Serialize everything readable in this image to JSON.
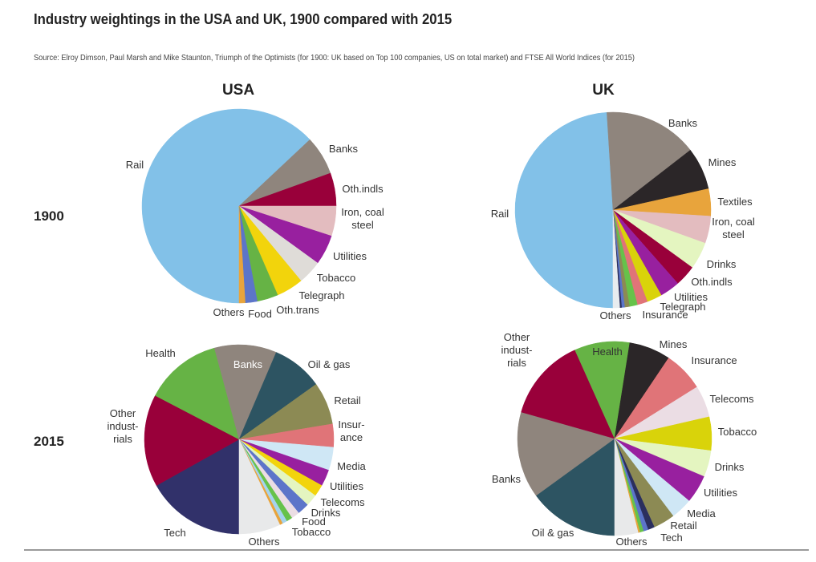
{
  "title": "Industry weightings in the USA and UK, 1900 compared with 2015",
  "source": "Source: Elroy Dimson, Paul Marsh and Mike Staunton, Triumph of the Optimists (for 1900: UK based on Top 100 companies, US on total market) and FTSE All World Indices (for 2015)",
  "columns": [
    "USA",
    "UK"
  ],
  "rows": [
    "1900",
    "2015"
  ],
  "chart_data": [
    {
      "type": "pie",
      "title": "USA 1900",
      "unit": "percent (estimated)",
      "start": "bottom, clockwise",
      "slices": [
        {
          "name": "Rail",
          "value": 63,
          "color": "#82c1e8",
          "label": [
            "Rail"
          ]
        },
        {
          "name": "Banks",
          "value": 6.5,
          "color": "#8f857d",
          "label": [
            "Banks"
          ]
        },
        {
          "name": "Oth.indls",
          "value": 5.5,
          "color": "#99003a",
          "label": [
            "Oth.indls"
          ]
        },
        {
          "name": "Iron, coal steel",
          "value": 5,
          "color": "#e3bcbf",
          "label": [
            "Iron, coal",
            "steel"
          ]
        },
        {
          "name": "Utilities",
          "value": 5,
          "color": "#98209f",
          "label": [
            "Utilities"
          ]
        },
        {
          "name": "Tobacco",
          "value": 4,
          "color": "#dfdcd8",
          "label": [
            "Tobacco"
          ]
        },
        {
          "name": "Telegraph",
          "value": 4.5,
          "color": "#f2d40c",
          "label": [
            "Telegraph"
          ]
        },
        {
          "name": "Oth.trans",
          "value": 3.5,
          "color": "#66b345",
          "label": [
            "Oth.trans"
          ]
        },
        {
          "name": "Food",
          "value": 2,
          "color": "#5c75c9",
          "label": [
            "Food"
          ]
        },
        {
          "name": "Others",
          "value": 1,
          "color": "#e8a43c",
          "label": [
            "Others"
          ]
        }
      ]
    },
    {
      "type": "pie",
      "title": "UK 1900",
      "unit": "percent (estimated)",
      "start": "bottom, clockwise",
      "slices": [
        {
          "name": "Rail",
          "value": 49,
          "color": "#82c1e8",
          "label": [
            "Rail"
          ]
        },
        {
          "name": "Banks",
          "value": 15.5,
          "color": "#8f857d",
          "label": [
            "Banks"
          ]
        },
        {
          "name": "Mines",
          "value": 7,
          "color": "#2b2628",
          "label": [
            "Mines"
          ]
        },
        {
          "name": "Textiles",
          "value": 4.5,
          "color": "#e8a43c",
          "label": [
            "Textiles"
          ]
        },
        {
          "name": "Iron, coal steel",
          "value": 4.5,
          "color": "#e3bcbf",
          "label": [
            "Iron, coal",
            "steel"
          ]
        },
        {
          "name": "Drinks",
          "value": 4.5,
          "color": "#e4f5c0",
          "label": [
            "Drinks"
          ]
        },
        {
          "name": "Oth.indls",
          "value": 3.5,
          "color": "#99003a",
          "label": [
            "Oth.indls"
          ]
        },
        {
          "name": "Utilities",
          "value": 3.3,
          "color": "#98209f",
          "label": [
            "Utilities"
          ]
        },
        {
          "name": "Telegraph",
          "value": 2.5,
          "color": "#d9d30a",
          "label": [
            "Telegraph"
          ]
        },
        {
          "name": "Insurance",
          "value": 1.7,
          "color": "#e07478",
          "label": [
            "Insurance"
          ]
        },
        {
          "name": "Unlabeled (green)",
          "value": 1.3,
          "color": "#66c24a",
          "label": []
        },
        {
          "name": "Unlabeled (olive)",
          "value": 0.8,
          "color": "#8c8a54",
          "label": []
        },
        {
          "name": "Unlabeled (blue)",
          "value": 0.5,
          "color": "#5c75c9",
          "label": []
        },
        {
          "name": "Unlabeled (navy)",
          "value": 0.3,
          "color": "#2b2f5e",
          "label": []
        },
        {
          "name": "Others",
          "value": 1.1,
          "color": "#e8ecef",
          "label": [
            "Others"
          ]
        }
      ]
    },
    {
      "type": "pie",
      "title": "USA 2015",
      "unit": "percent (estimated)",
      "start": "bottom, clockwise",
      "slices": [
        {
          "name": "Tech",
          "value": 16.7,
          "color": "#31316a",
          "label": [
            "Tech"
          ]
        },
        {
          "name": "Other industrials",
          "value": 15.6,
          "color": "#99003a",
          "label": [
            "Other",
            "indust-",
            "rials"
          ]
        },
        {
          "name": "Health",
          "value": 13,
          "color": "#66b345",
          "label": [
            "Health"
          ]
        },
        {
          "name": "Banks",
          "value": 10.5,
          "color": "#8f857d",
          "label": [
            "Banks"
          ]
        },
        {
          "name": "Oil & gas",
          "value": 8.6,
          "color": "#2d5462",
          "label": [
            "Oil & gas"
          ]
        },
        {
          "name": "Retail",
          "value": 7.2,
          "color": "#8c8a54",
          "label": [
            "Retail"
          ]
        },
        {
          "name": "Insurance",
          "value": 3.9,
          "color": "#e07478",
          "label": [
            "Insur-",
            "ance"
          ]
        },
        {
          "name": "Media",
          "value": 3.9,
          "color": "#cfe7f5",
          "label": [
            "Media"
          ]
        },
        {
          "name": "Utilities",
          "value": 2.8,
          "color": "#98209f",
          "label": [
            "Utilities"
          ]
        },
        {
          "name": "Telecoms",
          "value": 2,
          "color": "#f2d40c",
          "label": [
            "Telecoms"
          ]
        },
        {
          "name": "Drinks",
          "value": 2,
          "color": "#e4f5c0",
          "label": [
            "Drinks"
          ]
        },
        {
          "name": "Food",
          "value": 2,
          "color": "#5c75c9",
          "label": [
            "Food"
          ]
        },
        {
          "name": "Tobacco",
          "value": 1.4,
          "color": "#ebdde4",
          "label": [
            "Tobacco"
          ]
        },
        {
          "name": "Unlabeled (green)",
          "value": 1,
          "color": "#66c24a",
          "label": []
        },
        {
          "name": "Unlabeled (light blue)",
          "value": 0.8,
          "color": "#a5d3ee",
          "label": []
        },
        {
          "name": "Unlabeled (orange)",
          "value": 0.5,
          "color": "#e8a43c",
          "label": []
        },
        {
          "name": "Others",
          "value": 7,
          "color": "#e8e9ea",
          "label": [
            "Others"
          ]
        }
      ]
    },
    {
      "type": "pie",
      "title": "UK 2015",
      "unit": "percent (estimated)",
      "start": "bottom, clockwise",
      "slices": [
        {
          "name": "Oil & gas",
          "value": 15,
          "color": "#2d5462",
          "label": [
            "Oil & gas"
          ]
        },
        {
          "name": "Banks",
          "value": 14.4,
          "color": "#8f857d",
          "label": [
            "Banks"
          ]
        },
        {
          "name": "Other industrials",
          "value": 13.9,
          "color": "#99003a",
          "label": [
            "Other",
            "indust-",
            "rials"
          ]
        },
        {
          "name": "Health",
          "value": 9.2,
          "color": "#66b345",
          "label": [
            "Health"
          ]
        },
        {
          "name": "Mines",
          "value": 6.9,
          "color": "#2b2628",
          "label": [
            "Mines"
          ]
        },
        {
          "name": "Insurance",
          "value": 6.7,
          "color": "#e07478",
          "label": [
            "Insurance"
          ]
        },
        {
          "name": "Telecoms",
          "value": 5.3,
          "color": "#ebdde4",
          "label": [
            "Telecoms"
          ]
        },
        {
          "name": "Tobacco",
          "value": 5.6,
          "color": "#d9d30a",
          "label": [
            "Tobacco"
          ]
        },
        {
          "name": "Drinks",
          "value": 4.4,
          "color": "#e4f5c0",
          "label": [
            "Drinks"
          ]
        },
        {
          "name": "Utilities",
          "value": 4.7,
          "color": "#98209f",
          "label": [
            "Utilities"
          ]
        },
        {
          "name": "Media",
          "value": 3.6,
          "color": "#cfe7f5",
          "label": [
            "Media"
          ]
        },
        {
          "name": "Retail",
          "value": 3.6,
          "color": "#8c8a54",
          "label": [
            "Retail"
          ]
        },
        {
          "name": "Tech",
          "value": 1.1,
          "color": "#2b2f5e",
          "label": [
            "Tech"
          ]
        },
        {
          "name": "Unlabeled (blue)",
          "value": 0.8,
          "color": "#5c75c9",
          "label": []
        },
        {
          "name": "Unlabeled (green)",
          "value": 0.6,
          "color": "#66c24a",
          "label": []
        },
        {
          "name": "Unlabeled (orange)",
          "value": 0.3,
          "color": "#e8a43c",
          "label": []
        },
        {
          "name": "Others",
          "value": 3.9,
          "color": "#e8e9ea",
          "label": [
            "Others"
          ]
        }
      ]
    }
  ]
}
